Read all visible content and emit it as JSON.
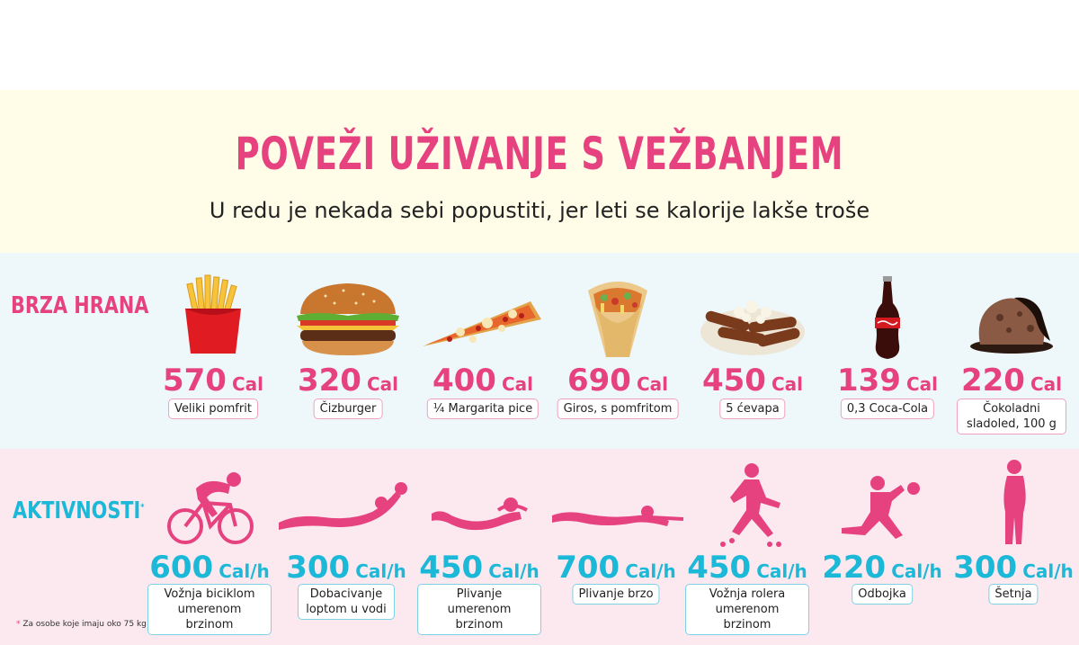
{
  "header": {
    "title": "POVEŽI UŽIVANJE S VEŽBANJEM",
    "subtitle": "U redu je nekada sebi popustiti, jer leti se kalorije lakše troše"
  },
  "food_section": {
    "label": "BRZA HRANA",
    "unit": "Cal",
    "items": [
      {
        "value": "570",
        "name": "Veliki pomfrit",
        "icon": "fries-icon"
      },
      {
        "value": "320",
        "name": "Čizburger",
        "icon": "cheeseburger-icon"
      },
      {
        "value": "400",
        "name": "¼ Margarita pice",
        "icon": "pizza-slice-icon"
      },
      {
        "value": "690",
        "name": "Giros, s pomfritom",
        "icon": "gyros-icon"
      },
      {
        "value": "450",
        "name": "5 ćevapa",
        "icon": "cevapi-icon"
      },
      {
        "value": "139",
        "name": "0,3 Coca-Cola",
        "icon": "cola-bottle-icon"
      },
      {
        "value": "220",
        "name": "Čokoladni sladoled, 100 g",
        "icon": "ice-cream-icon"
      }
    ]
  },
  "activity_section": {
    "label": "AKTIVNOSTI",
    "asterisk": "*",
    "unit": "Cal/h",
    "items": [
      {
        "value": "600",
        "name": "Vožnja biciklom umerenom brzinom",
        "icon": "cyclist-icon"
      },
      {
        "value": "300",
        "name": "Dobacivanje loptom u vodi",
        "icon": "water-ball-icon"
      },
      {
        "value": "450",
        "name": "Plivanje umerenom brzinom",
        "icon": "swimmer-icon"
      },
      {
        "value": "700",
        "name": "Plivanje brzo",
        "icon": "fast-swimmer-icon"
      },
      {
        "value": "450",
        "name": "Vožnja rolera umerenom brzinom",
        "icon": "roller-skater-icon"
      },
      {
        "value": "220",
        "name": "Odbojka",
        "icon": "volleyball-player-icon"
      },
      {
        "value": "300",
        "name": "Šetnja",
        "icon": "walking-woman-icon"
      }
    ]
  },
  "footnote": {
    "star": "*",
    "text": "Za osobe koje imaju oko 75 kg"
  },
  "colors": {
    "pink": "#e6427f",
    "cyan": "#1bb8d8",
    "header_bg": "#fffde8",
    "food_bg": "#eef7fa",
    "activity_bg": "#fce9ef"
  }
}
